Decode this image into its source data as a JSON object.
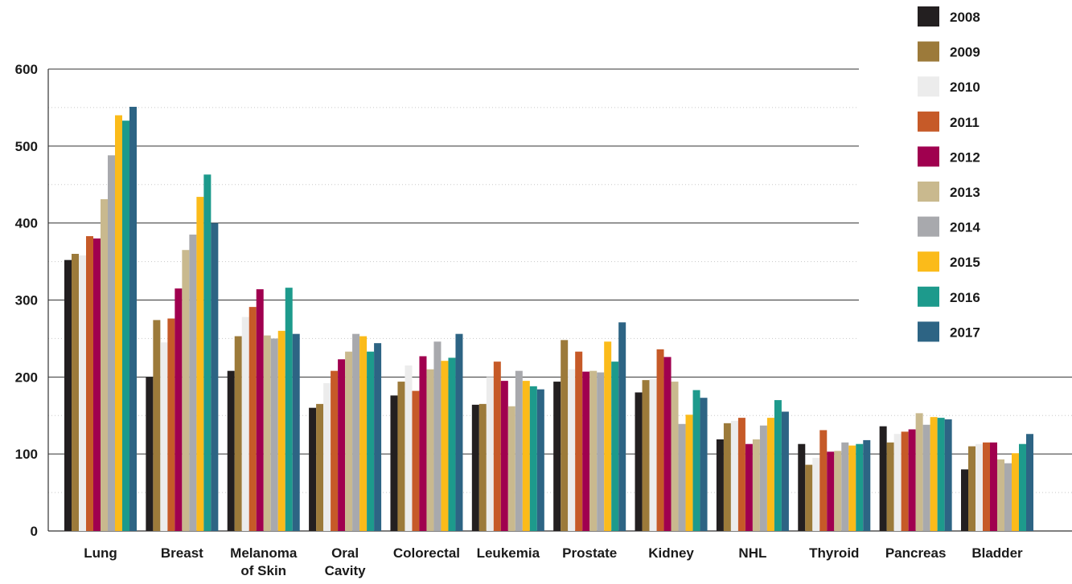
{
  "chart_data": {
    "type": "bar",
    "title": "",
    "xlabel": "",
    "ylabel": "",
    "ylim": [
      0,
      600
    ],
    "yticks": [
      0,
      100,
      200,
      300,
      400,
      500,
      600
    ],
    "grid": "horizontal",
    "legend_position": "top-right",
    "categories": [
      [
        "Lung"
      ],
      [
        "Breast"
      ],
      [
        "Melanoma",
        "of Skin"
      ],
      [
        "Oral",
        "Cavity"
      ],
      [
        "Colorectal"
      ],
      [
        "Leukemia"
      ],
      [
        "Prostate"
      ],
      [
        "Kidney"
      ],
      [
        "NHL"
      ],
      [
        "Thyroid"
      ],
      [
        "Pancreas"
      ],
      [
        "Bladder"
      ]
    ],
    "series": [
      {
        "name": "2008",
        "color": "#231f20",
        "values": [
          352,
          200,
          208,
          160,
          176,
          164,
          194,
          180,
          119,
          113,
          136,
          80
        ]
      },
      {
        "name": "2009",
        "color": "#9c7a3a",
        "values": [
          360,
          274,
          253,
          165,
          194,
          165,
          248,
          196,
          140,
          86,
          115,
          110
        ]
      },
      {
        "name": "2010",
        "color": "#ececec",
        "values": [
          358,
          245,
          278,
          192,
          215,
          200,
          210,
          197,
          143,
          95,
          126,
          113
        ]
      },
      {
        "name": "2011",
        "color": "#c65a28",
        "values": [
          383,
          276,
          291,
          208,
          182,
          220,
          233,
          236,
          147,
          131,
          129,
          115
        ]
      },
      {
        "name": "2012",
        "color": "#a0004f",
        "values": [
          380,
          315,
          314,
          223,
          227,
          195,
          207,
          226,
          113,
          103,
          132,
          115
        ]
      },
      {
        "name": "2013",
        "color": "#c9b98e",
        "values": [
          431,
          365,
          254,
          233,
          210,
          162,
          208,
          194,
          119,
          104,
          153,
          93
        ]
      },
      {
        "name": "2014",
        "color": "#a8a9ad",
        "values": [
          488,
          385,
          250,
          256,
          246,
          208,
          206,
          139,
          137,
          115,
          138,
          88
        ]
      },
      {
        "name": "2015",
        "color": "#fbbb1a",
        "values": [
          540,
          434,
          260,
          253,
          221,
          195,
          246,
          151,
          147,
          111,
          148,
          101
        ]
      },
      {
        "name": "2016",
        "color": "#1d9a8c",
        "values": [
          533,
          463,
          316,
          233,
          225,
          188,
          220,
          183,
          170,
          113,
          147,
          113
        ]
      },
      {
        "name": "2017",
        "color": "#2d6484",
        "values": [
          551,
          400,
          256,
          244,
          256,
          184,
          271,
          173,
          155,
          118,
          145,
          126
        ]
      }
    ]
  }
}
